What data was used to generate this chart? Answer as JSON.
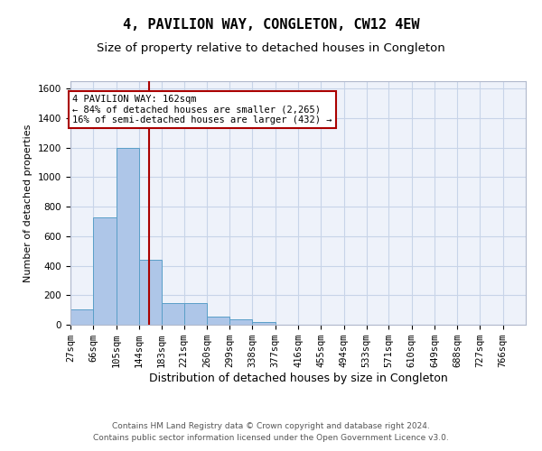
{
  "title": "4, PAVILION WAY, CONGLETON, CW12 4EW",
  "subtitle": "Size of property relative to detached houses in Congleton",
  "xlabel": "Distribution of detached houses by size in Congleton",
  "ylabel": "Number of detached properties",
  "footer_line1": "Contains HM Land Registry data © Crown copyright and database right 2024.",
  "footer_line2": "Contains public sector information licensed under the Open Government Licence v3.0.",
  "bar_edges": [
    27,
    66,
    105,
    144,
    183,
    221,
    260,
    299,
    338,
    377,
    416,
    455,
    494,
    533,
    571,
    610,
    649,
    688,
    727,
    766,
    805
  ],
  "bar_heights": [
    105,
    730,
    1200,
    440,
    145,
    145,
    55,
    35,
    20,
    0,
    0,
    0,
    0,
    0,
    0,
    0,
    0,
    0,
    0,
    0
  ],
  "bar_color": "#aec6e8",
  "bar_edge_color": "#5a9fc8",
  "property_size": 162,
  "annotation_line1": "4 PAVILION WAY: 162sqm",
  "annotation_line2": "← 84% of detached houses are smaller (2,265)",
  "annotation_line3": "16% of semi-detached houses are larger (432) →",
  "vline_color": "#aa0000",
  "annotation_box_edgecolor": "#aa0000",
  "ylim": [
    0,
    1650
  ],
  "yticks": [
    0,
    200,
    400,
    600,
    800,
    1000,
    1200,
    1400,
    1600
  ],
  "grid_color": "#c8d4e8",
  "background_color": "#eef2fa",
  "title_fontsize": 11,
  "subtitle_fontsize": 9.5,
  "xlabel_fontsize": 9,
  "ylabel_fontsize": 8,
  "tick_fontsize": 7.5,
  "footer_fontsize": 6.5,
  "annotation_fontsize": 7.5
}
